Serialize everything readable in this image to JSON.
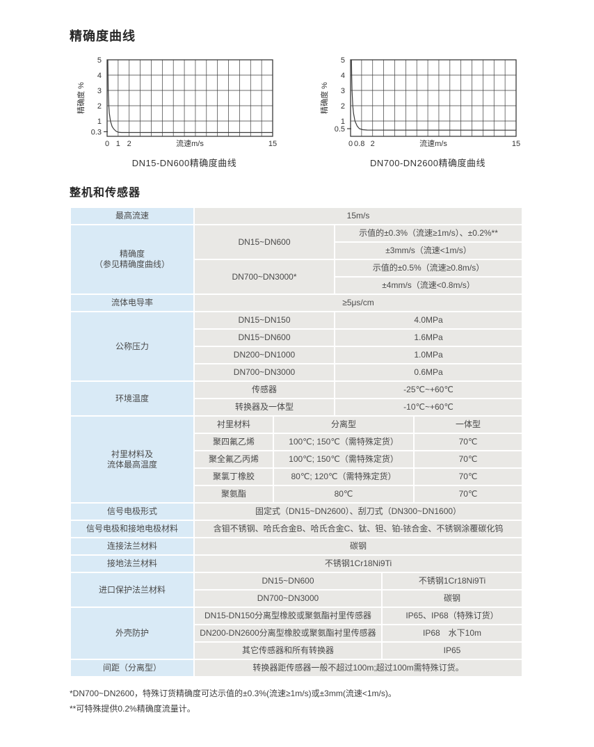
{
  "titles": {
    "section1": "精确度曲线",
    "section2": "整机和传感器"
  },
  "colors": {
    "label_cell": "#d9eaf6",
    "value_cell": "#e9e8e5",
    "chart_line": "#3a3a3a",
    "text": "#4a4a4a"
  },
  "charts": [
    {
      "type": "line",
      "caption": "DN15-DN600精确度曲线",
      "xlabel": "流速m/s",
      "ylabel": "精确度  %",
      "xlim": [
        0,
        15
      ],
      "ylim": [
        0,
        5
      ],
      "x_grid_step": 1,
      "y_gridlines": [
        1,
        2,
        3,
        4
      ],
      "y_tick_labels": [
        {
          "v": 5,
          "t": "5"
        },
        {
          "v": 4,
          "t": "4"
        },
        {
          "v": 3,
          "t": "3"
        },
        {
          "v": 2,
          "t": "2"
        },
        {
          "v": 1,
          "t": "1"
        }
      ],
      "y_minor_tick": {
        "v": 0.3,
        "t": "0.3"
      },
      "x_tick_labels": [
        {
          "v": 0,
          "t": "0"
        },
        {
          "v": 1,
          "t": "1"
        },
        {
          "v": 2,
          "t": "2"
        },
        {
          "v": 15,
          "t": "15"
        }
      ],
      "curve": [
        [
          0.06,
          5
        ],
        [
          0.08,
          4
        ],
        [
          0.1,
          3
        ],
        [
          0.15,
          2
        ],
        [
          0.2,
          1.5
        ],
        [
          0.3,
          1.0
        ],
        [
          0.45,
          0.65
        ],
        [
          0.6,
          0.48
        ],
        [
          0.8,
          0.34
        ],
        [
          1.0,
          0.27
        ],
        [
          1.3,
          0.25
        ],
        [
          15,
          0.25
        ]
      ]
    },
    {
      "type": "line",
      "caption": "DN700-DN2600精确度曲线",
      "xlabel": "流速m/s",
      "ylabel": "精确度  %",
      "xlim": [
        0,
        15
      ],
      "ylim": [
        0,
        5
      ],
      "x_grid_step": 1,
      "y_gridlines": [
        1,
        2,
        3,
        4
      ],
      "y_tick_labels": [
        {
          "v": 5,
          "t": "5"
        },
        {
          "v": 4,
          "t": "4"
        },
        {
          "v": 3,
          "t": "3"
        },
        {
          "v": 2,
          "t": "2"
        },
        {
          "v": 1,
          "t": "1"
        }
      ],
      "y_minor_tick": {
        "v": 0.5,
        "t": "0.5"
      },
      "x_tick_labels": [
        {
          "v": 0,
          "t": "0"
        },
        {
          "v": 0.8,
          "t": "0.8"
        },
        {
          "v": 2,
          "t": "2"
        },
        {
          "v": 15,
          "t": "15"
        }
      ],
      "curve": [
        [
          0.08,
          5
        ],
        [
          0.1,
          4
        ],
        [
          0.135,
          3
        ],
        [
          0.2,
          2
        ],
        [
          0.27,
          1.5
        ],
        [
          0.4,
          1.0
        ],
        [
          0.6,
          0.67
        ],
        [
          0.8,
          0.5
        ],
        [
          1.1,
          0.43
        ],
        [
          1.5,
          0.41
        ],
        [
          15,
          0.4
        ]
      ]
    }
  ],
  "spec": {
    "max_velocity": {
      "label": "最高流速",
      "value": "15m/s"
    },
    "accuracy": {
      "label_line1": "精确度",
      "label_line2": "（参见精确度曲线）",
      "groups": [
        {
          "range": "DN15~DN600",
          "v1": "示值的±0.3%（流速≥1m/s）、±0.2%**",
          "v2": "±3mm/s（流速<1m/s）"
        },
        {
          "range": "DN700~DN3000*",
          "v1": "示值的±0.5%（流速≥0.8m/s）",
          "v2": "±4mm/s（流速<0.8m/s）"
        }
      ]
    },
    "conductivity": {
      "label": "流体电导率",
      "value": "≥5μs/cm"
    },
    "pressure": {
      "label": "公称压力",
      "items": [
        {
          "range": "DN15~DN150",
          "value": "4.0MPa"
        },
        {
          "range": "DN15~DN600",
          "value": "1.6MPa"
        },
        {
          "range": "DN200~DN1000",
          "value": "1.0MPa"
        },
        {
          "range": "DN700~DN3000",
          "value": "0.6MPa"
        }
      ]
    },
    "ambient_temp": {
      "label": "环境温度",
      "items": [
        {
          "part": "传感器",
          "value": "-25℃~+60℃"
        },
        {
          "part": "转换器及一体型",
          "value": "-10℃~+60℃"
        }
      ]
    },
    "lining": {
      "label_line1": "衬里材料及",
      "label_line2": "流体最高温度",
      "header": {
        "material": "衬里材料",
        "remote": "分离型",
        "integral": "一体型"
      },
      "items": [
        {
          "material": "聚四氟乙烯",
          "remote": "100℃; 150℃（需特殊定货）",
          "integral": "70℃"
        },
        {
          "material": "聚全氟乙丙烯",
          "remote": "100℃; 150℃（需特殊定货）",
          "integral": "70℃"
        },
        {
          "material": "聚氯丁橡胶",
          "remote": "80℃; 120℃（需特殊定货）",
          "integral": "70℃"
        },
        {
          "material": "聚氨酯",
          "remote": "80℃",
          "integral": "70℃"
        }
      ]
    },
    "electrode_form": {
      "label": "信号电极形式",
      "value": "固定式（DN15~DN2600）、刮刀式（DN300~DN1600）"
    },
    "electrode_material": {
      "label": "信号电极和接地电极材料",
      "value": "含钼不锈钢、哈氏合金B、哈氏合金C、钛、钽、铂-铱合金、不锈钢涂覆碳化钨"
    },
    "connect_flange": {
      "label": "连接法兰材料",
      "value": "碳钢"
    },
    "ground_flange": {
      "label": "接地法兰材料",
      "value": "不锈钢1Cr18Ni9Ti"
    },
    "inlet_flange": {
      "label": "进口保护法兰材料",
      "items": [
        {
          "range": "DN15~DN600",
          "value": "不锈钢1Cr18Ni9Ti"
        },
        {
          "range": "DN700~DN3000",
          "value": "碳钢"
        }
      ]
    },
    "enclosure": {
      "label": "外壳防护",
      "items": [
        {
          "range": "DN15-DN150分离型橡胶或聚氨酯衬里传感器",
          "value": "IP65、IP68（特殊订货）"
        },
        {
          "range": "DN200-DN2600分离型橡胶或聚氨酯衬里传感器",
          "value": "IP68　水下10m"
        },
        {
          "range": "其它传感器和所有转换器",
          "value": "IP65"
        }
      ]
    },
    "spacing": {
      "label": "间距（分离型）",
      "value": "转换器距传感器一般不超过100m;超过100m需特殊订货。"
    }
  },
  "footnotes": [
    "*DN700~DN2600，特殊订货精确度可达示值的±0.3%(流速≥1m/s)或±3mm(流速<1m/s)。",
    "**可特殊提供0.2%精确度流量计。"
  ]
}
